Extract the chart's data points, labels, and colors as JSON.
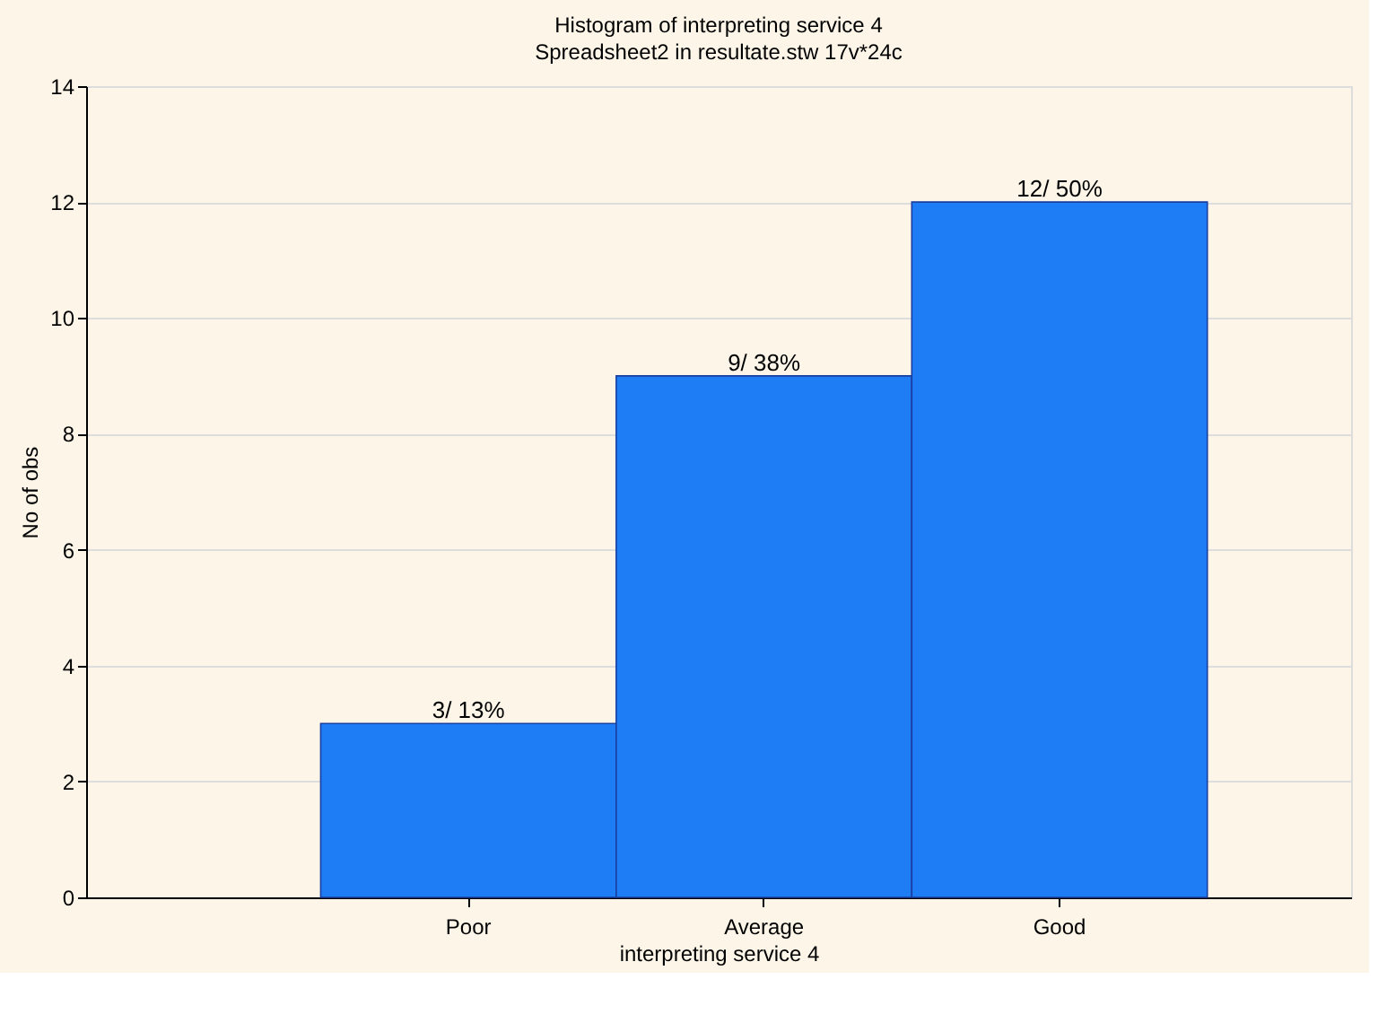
{
  "chart_data": {
    "type": "bar",
    "title": "Histogram of interpreting service 4",
    "subtitle": "Spreadsheet2 in resultate.stw 17v*24c",
    "xlabel": "interpreting service 4",
    "ylabel": "No of obs",
    "categories": [
      "Poor",
      "Average",
      "Good"
    ],
    "values": [
      3,
      9,
      12
    ],
    "color": "#1e7cf5",
    "value_labels": [
      "3/ 13%",
      "9/ 38%",
      "12/ 50%"
    ],
    "ylim": [
      0,
      14
    ],
    "yticks": [
      0,
      2,
      4,
      6,
      8,
      10,
      12,
      14
    ],
    "grid": "y"
  }
}
